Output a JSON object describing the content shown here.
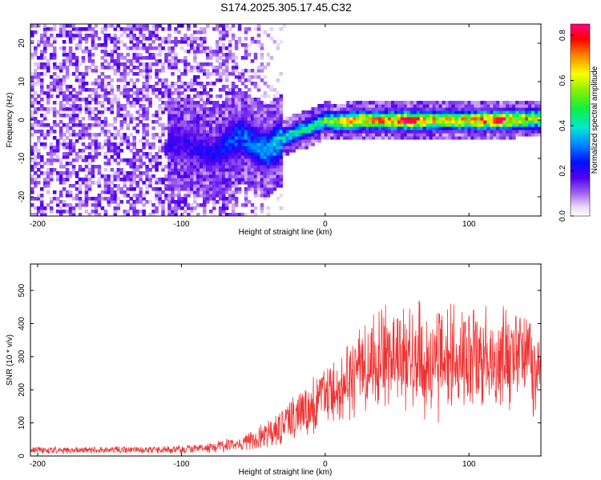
{
  "title": "S174.2025.305.17.45.C32",
  "chart_data": [
    {
      "type": "heatmap",
      "title": "S174.2025.305.17.45.C32",
      "xlabel": "Height of straight line (km)",
      "ylabel": "Frequency (Hz)",
      "xlim": [
        -205,
        150
      ],
      "ylim": [
        -25,
        25
      ],
      "x_ticks": [
        -200,
        -100,
        0,
        100
      ],
      "y_ticks": [
        -20,
        -10,
        0,
        10,
        20
      ],
      "colorbar": {
        "label": "Normalized spectral amplitude",
        "range": [
          0.0,
          0.85
        ],
        "ticks": [
          0.0,
          0.2,
          0.4,
          0.6,
          0.8
        ],
        "colormap": "rainbow (white-violet-blue-cyan-green-yellow-red-magenta)"
      },
      "ridge": {
        "description": "dominant frequency ridge, estimated",
        "x": [
          -100,
          -90,
          -80,
          -70,
          -60,
          -50,
          -40,
          -30,
          -20,
          -10,
          0,
          10,
          20,
          40,
          60,
          80,
          100,
          120,
          150
        ],
        "y": [
          -6,
          -7,
          -9,
          -7,
          -4,
          -6,
          -8,
          -5,
          -3,
          -2,
          0,
          -0.5,
          0,
          0,
          0,
          0,
          0,
          0,
          0.5
        ],
        "amplitude": [
          0.2,
          0.2,
          0.2,
          0.25,
          0.3,
          0.3,
          0.35,
          0.4,
          0.45,
          0.45,
          0.5,
          0.65,
          0.7,
          0.7,
          0.8,
          0.65,
          0.7,
          0.8,
          0.6
        ]
      },
      "noise_region": {
        "x_from": -205,
        "x_to": -60,
        "amplitude": [
          0.02,
          0.15
        ]
      }
    },
    {
      "type": "line",
      "xlabel": "Height of straight line (km)",
      "ylabel": "SNR (10 * v/v)",
      "xlim": [
        -205,
        150
      ],
      "ylim": [
        0,
        580
      ],
      "x_ticks": [
        -200,
        -100,
        0,
        100
      ],
      "y_ticks": [
        0,
        100,
        200,
        300,
        400,
        500
      ],
      "color": "#ee3333",
      "envelope": {
        "description": "mean and fluctuation amplitude of the noisy SNR trace, estimated",
        "x": [
          -205,
          -150,
          -100,
          -80,
          -60,
          -40,
          -20,
          0,
          20,
          40,
          60,
          80,
          100,
          120,
          150
        ],
        "mean": [
          18,
          18,
          20,
          25,
          35,
          60,
          120,
          180,
          240,
          290,
          300,
          290,
          300,
          290,
          290
        ],
        "spread": [
          10,
          10,
          12,
          15,
          20,
          40,
          70,
          100,
          130,
          150,
          160,
          160,
          150,
          150,
          150
        ]
      }
    }
  ]
}
